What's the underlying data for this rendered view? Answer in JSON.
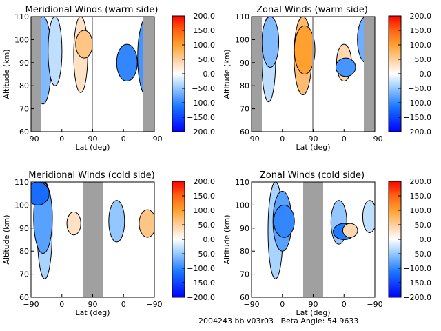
{
  "footer": {
    "run_id": "2004243 bb v03r03",
    "beta_label": "Beta Angle:",
    "beta_value": "54.9633"
  },
  "colors": {
    "data_gap": "#a0a0a0",
    "contour_line": "#000000",
    "colormap": [
      "#0000ff",
      "#1a78ff",
      "#7cc0ff",
      "#cfe6ff",
      "#ffffff",
      "#ffe0c0",
      "#ffb860",
      "#ff9010",
      "#ff5010",
      "#ff0000"
    ]
  },
  "chart_data": [
    {
      "type": "heatmap",
      "title": "Meridional Winds (warm side)",
      "xlabel": "Lat (deg)",
      "ylabel": "Altitude (km)",
      "xticks": [
        "-90",
        "0",
        "90",
        "0",
        "-90"
      ],
      "yticks": [
        "60",
        "70",
        "80",
        "90",
        "100",
        "110"
      ],
      "ylim": [
        60,
        110
      ],
      "colorbar": {
        "range": [
          -200,
          200
        ],
        "ticks": [
          "200.0",
          "150.0",
          "100.0",
          "50.0",
          "0.0",
          "-50.0",
          "-100.0",
          "-150.0",
          "-200.0"
        ]
      },
      "gaps": [
        [
          -90,
          -67
        ],
        [
          88,
          91
        ],
        [
          -62,
          -90
        ]
      ],
      "features": [
        {
          "lat_idx": -55,
          "alt": [
            72,
            110
          ],
          "value": -60
        },
        {
          "lat_idx": -20,
          "alt": [
            80,
            110
          ],
          "value": -30
        },
        {
          "lat_idx": 55,
          "alt": [
            77,
            110
          ],
          "value": 30
        },
        {
          "lat_idx": 65,
          "alt": [
            92,
            104
          ],
          "value": 60
        },
        {
          "lat_idx": 190,
          "alt": [
            82,
            98
          ],
          "value": -100
        },
        {
          "lat_idx": 250,
          "alt": [
            75,
            110
          ],
          "value": -90
        }
      ]
    },
    {
      "type": "heatmap",
      "title": "Zonal Winds (warm side)",
      "xlabel": "Lat (deg)",
      "ylabel": "Altitude (km)",
      "xticks": [
        "-90",
        "0",
        "90",
        "0",
        "-90"
      ],
      "yticks": [
        "60",
        "70",
        "80",
        "90",
        "100",
        "110"
      ],
      "ylim": [
        60,
        110
      ],
      "colorbar": {
        "range": [
          -200,
          200
        ],
        "ticks": [
          "200.0",
          "150.0",
          "100.0",
          "50.0",
          "0.0",
          "-50.0",
          "-100.0",
          "-150.0",
          "-200.0"
        ]
      },
      "gaps": [
        [
          -90,
          -67
        ],
        [
          88,
          91
        ],
        [
          -62,
          -90
        ]
      ],
      "features": [
        {
          "lat_idx": -40,
          "alt": [
            73,
            110
          ],
          "value": -30
        },
        {
          "lat_idx": -35,
          "alt": [
            88,
            110
          ],
          "value": -60
        },
        {
          "lat_idx": 60,
          "alt": [
            76,
            110
          ],
          "value": 70
        },
        {
          "lat_idx": 65,
          "alt": [
            85,
            106
          ],
          "value": 100
        },
        {
          "lat_idx": 180,
          "alt": [
            82,
            98
          ],
          "value": 40
        },
        {
          "lat_idx": 185,
          "alt": [
            84,
            92
          ],
          "value": -90
        },
        {
          "lat_idx": 245,
          "alt": [
            90,
            110
          ],
          "value": -70
        }
      ]
    },
    {
      "type": "heatmap",
      "title": "Meridional Winds (cold side)",
      "xlabel": "Lat (deg)",
      "ylabel": "Altitude (km)",
      "xticks": [
        "-90",
        "0",
        "90",
        "0",
        "-90"
      ],
      "yticks": [
        "60",
        "70",
        "80",
        "90",
        "100",
        "110"
      ],
      "ylim": [
        60,
        110
      ],
      "colorbar": {
        "range": [
          -200,
          200
        ],
        "ticks": [
          "200.0",
          "150.0",
          "100.0",
          "50.0",
          "0.0",
          "-50.0",
          "-100.0",
          "-150.0",
          "-200.0"
        ]
      },
      "gaps": [
        [
          60,
          125
        ]
      ],
      "features": [
        {
          "lat_idx": -50,
          "alt": [
            68,
            110
          ],
          "value": -40
        },
        {
          "lat_idx": -55,
          "alt": [
            79,
            110
          ],
          "value": -80
        },
        {
          "lat_idx": -70,
          "alt": [
            100,
            110
          ],
          "value": -120
        },
        {
          "lat_idx": 35,
          "alt": [
            87,
            97
          ],
          "value": 30
        },
        {
          "lat_idx": 160,
          "alt": [
            84,
            102
          ],
          "value": -50
        },
        {
          "lat_idx": 250,
          "alt": [
            86,
            98
          ],
          "value": 60
        }
      ]
    },
    {
      "type": "heatmap",
      "title": "Zonal Winds (cold side)",
      "xlabel": "Lat (deg)",
      "ylabel": "Altitude (km)",
      "xticks": [
        "-90",
        "0",
        "90",
        "0",
        "-90"
      ],
      "yticks": [
        "60",
        "70",
        "80",
        "90",
        "100",
        "110"
      ],
      "ylim": [
        60,
        110
      ],
      "colorbar": {
        "range": [
          -200,
          200
        ],
        "ticks": [
          "200.0",
          "150.0",
          "100.0",
          "50.0",
          "0.0",
          "-50.0",
          "-100.0",
          "-150.0",
          "-200.0"
        ]
      },
      "gaps": [
        [
          60,
          125
        ]
      ],
      "features": [
        {
          "lat_idx": -20,
          "alt": [
            68,
            110
          ],
          "value": -40
        },
        {
          "lat_idx": 0,
          "alt": [
            80,
            106
          ],
          "value": -80
        },
        {
          "lat_idx": 5,
          "alt": [
            86,
            100
          ],
          "value": -100
        },
        {
          "lat_idx": 165,
          "alt": [
            83,
            102
          ],
          "value": -50
        },
        {
          "lat_idx": 180,
          "alt": [
            85,
            92
          ],
          "value": -110
        },
        {
          "lat_idx": 198,
          "alt": [
            86,
            92
          ],
          "value": 40
        },
        {
          "lat_idx": 255,
          "alt": [
            88,
            102
          ],
          "value": -30
        }
      ]
    }
  ]
}
